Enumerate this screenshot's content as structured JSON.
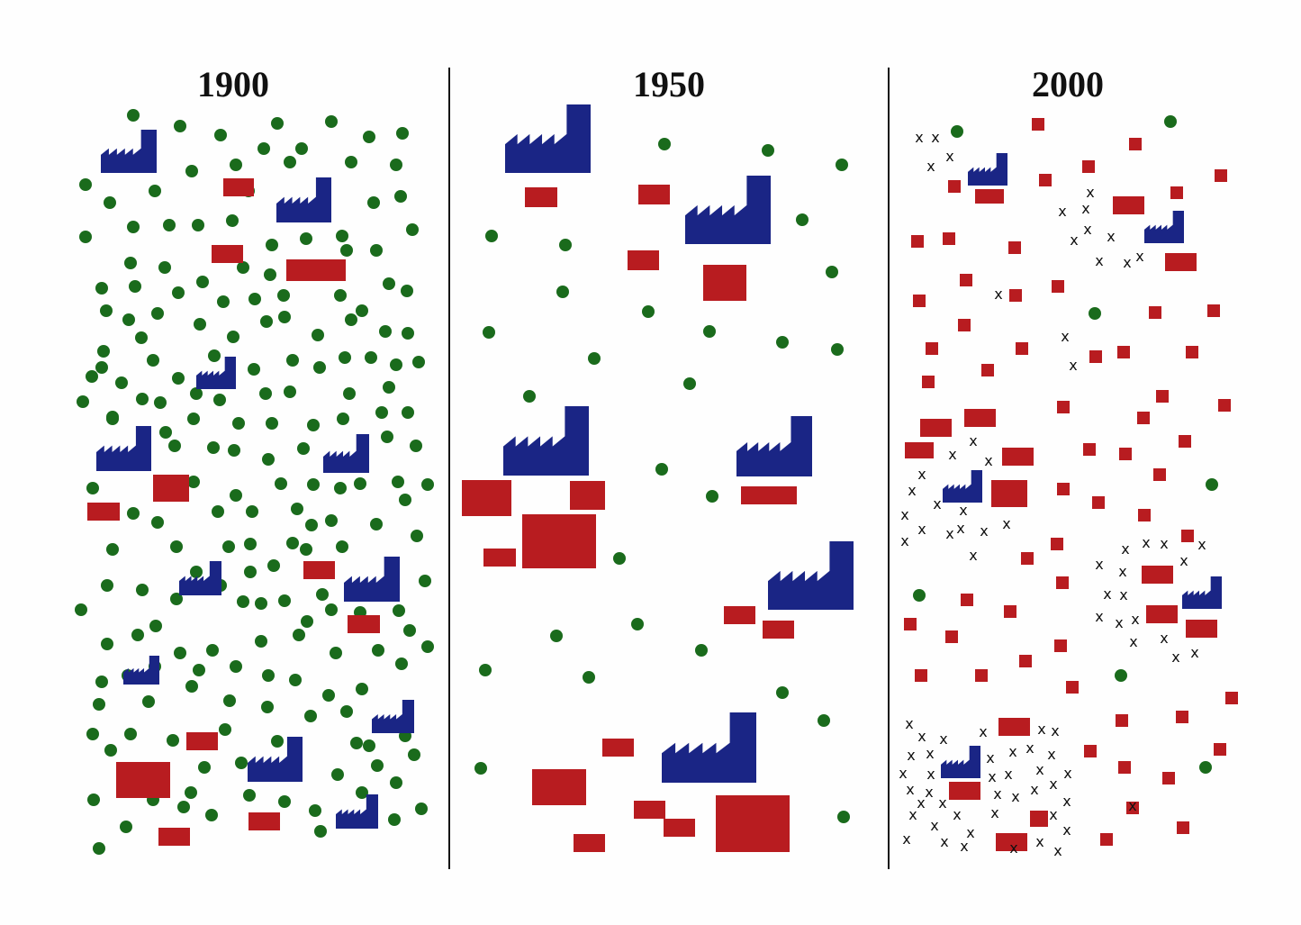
{
  "panels": [
    {
      "year": "1900"
    },
    {
      "year": "1950"
    },
    {
      "year": "2000"
    }
  ],
  "colors": {
    "tree": "#1a6b1c",
    "building": "#b81c20",
    "factory": "#1a2585",
    "x_mark": "#111111",
    "divider": "#111111",
    "background": "#fefefe"
  },
  "legend": {
    "x_mark_glyph": "x"
  }
}
